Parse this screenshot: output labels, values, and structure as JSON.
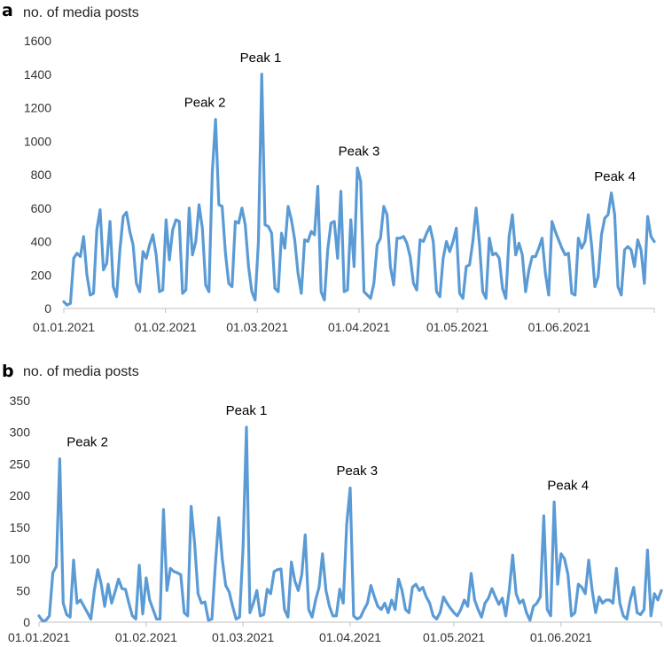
{
  "colors": {
    "series": "#5b9bd5",
    "axis": "#bfbfbf"
  },
  "chart_data": [
    {
      "type": "line",
      "panel_label": "a",
      "ylabel": "no. of media posts",
      "ylim": [
        0,
        1600
      ],
      "yticks": [
        "0",
        "200",
        "400",
        "600",
        "800",
        "1000",
        "1200",
        "1400",
        "1600"
      ],
      "xlim": [
        "01.01.2021",
        "30.06.2021"
      ],
      "xticks": [
        "01.01.2021",
        "01.02.2021",
        "01.03.2021",
        "01.04.2021",
        "01.05.2021",
        "01.06.2021"
      ],
      "grid": false,
      "annotations": [
        {
          "text": "Peak 1",
          "x": "02.03.2021",
          "y": 1400
        },
        {
          "text": "Peak 2",
          "x": "13.02.2021",
          "y": 1130
        },
        {
          "text": "Peak 3",
          "x": "01.04.2021",
          "y": 840
        },
        {
          "text": "Peak 4",
          "x": "18.06.2021",
          "y": 690
        }
      ],
      "series": [
        {
          "values": [
            40,
            20,
            30,
            300,
            330,
            310,
            430,
            200,
            80,
            90,
            470,
            590,
            230,
            270,
            520,
            130,
            70,
            350,
            550,
            575,
            460,
            380,
            150,
            100,
            340,
            300,
            380,
            440,
            320,
            100,
            110,
            530,
            290,
            470,
            530,
            520,
            90,
            110,
            600,
            320,
            400,
            620,
            480,
            140,
            100,
            810,
            1130,
            620,
            610,
            330,
            150,
            130,
            520,
            510,
            600,
            500,
            250,
            100,
            50,
            400,
            1400,
            500,
            490,
            450,
            120,
            100,
            450,
            360,
            610,
            530,
            410,
            210,
            90,
            410,
            400,
            460,
            440,
            730,
            100,
            50,
            350,
            510,
            520,
            300,
            700,
            100,
            110,
            530,
            250,
            840,
            760,
            100,
            80,
            60,
            150,
            380,
            420,
            610,
            560,
            250,
            140,
            420,
            420,
            430,
            390,
            310,
            150,
            110,
            410,
            400,
            450,
            490,
            400,
            100,
            70,
            300,
            400,
            340,
            400,
            480,
            90,
            60,
            250,
            260,
            400,
            600,
            390,
            100,
            60,
            420,
            320,
            330,
            300,
            120,
            60,
            430,
            560,
            320,
            390,
            320,
            100,
            230,
            310,
            310,
            360,
            420,
            210,
            80,
            520,
            460,
            410,
            360,
            320,
            330,
            90,
            80,
            420,
            360,
            400,
            560,
            380,
            130,
            190,
            440,
            540,
            560,
            690,
            560,
            130,
            80,
            350,
            370,
            350,
            250,
            410,
            350,
            150,
            550,
            430,
            400
          ]
        }
      ]
    },
    {
      "type": "line",
      "panel_label": "b",
      "ylabel": "no. of media posts",
      "ylim": [
        0,
        350
      ],
      "yticks": [
        "0",
        "50",
        "100",
        "150",
        "200",
        "250",
        "300",
        "350"
      ],
      "xlim": [
        "01.01.2021",
        "30.06.2021"
      ],
      "xticks": [
        "01.01.2021",
        "01.02.2021",
        "01.03.2021",
        "01.04.2021",
        "01.05.2021",
        "01.06.2021"
      ],
      "grid": false,
      "annotations": [
        {
          "text": "Peak 1",
          "x": "02.03.2021",
          "y": 308
        },
        {
          "text": "Peak 2",
          "x": "15.01.2021",
          "y": 258
        },
        {
          "text": "Peak 3",
          "x": "03.04.2021",
          "y": 213
        },
        {
          "text": "Peak 4",
          "x": "03.06.2021",
          "y": 190
        }
      ],
      "series": [
        {
          "values": [
            10,
            2,
            3,
            10,
            78,
            88,
            258,
            30,
            12,
            8,
            98,
            30,
            35,
            25,
            15,
            5,
            50,
            83,
            60,
            25,
            60,
            30,
            48,
            68,
            53,
            52,
            30,
            10,
            5,
            90,
            13,
            70,
            35,
            20,
            5,
            5,
            178,
            50,
            85,
            80,
            78,
            75,
            15,
            10,
            183,
            125,
            45,
            30,
            32,
            3,
            5,
            90,
            165,
            100,
            58,
            48,
            25,
            5,
            8,
            115,
            308,
            15,
            30,
            50,
            10,
            12,
            52,
            45,
            80,
            83,
            84,
            20,
            8,
            95,
            65,
            50,
            75,
            138,
            20,
            8,
            35,
            55,
            108,
            50,
            25,
            10,
            10,
            52,
            30,
            155,
            212,
            10,
            5,
            8,
            20,
            30,
            58,
            40,
            25,
            20,
            30,
            15,
            35,
            20,
            68,
            50,
            20,
            15,
            55,
            60,
            50,
            55,
            40,
            30,
            10,
            5,
            15,
            40,
            30,
            22,
            15,
            10,
            20,
            35,
            25,
            77,
            35,
            20,
            8,
            30,
            38,
            53,
            40,
            28,
            38,
            10,
            50,
            106,
            45,
            30,
            35,
            15,
            3,
            25,
            30,
            40,
            168,
            20,
            10,
            190,
            60,
            108,
            100,
            75,
            10,
            15,
            60,
            55,
            45,
            98,
            50,
            15,
            40,
            30,
            35,
            35,
            30,
            85,
            30,
            10,
            5,
            35,
            55,
            15,
            12,
            20,
            114,
            10,
            45,
            35,
            50
          ]
        }
      ]
    }
  ]
}
